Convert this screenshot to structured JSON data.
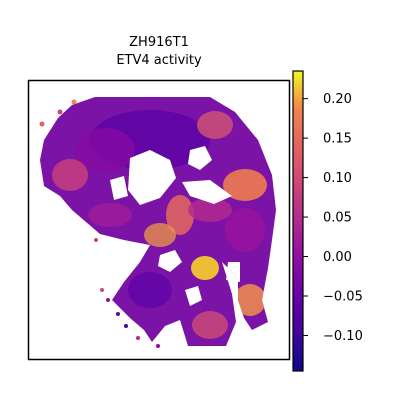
{
  "chart_data": {
    "type": "heatmap",
    "title_lines": [
      "ZH916T1",
      "ETV4 activity"
    ],
    "xlabel": "",
    "ylabel": "",
    "grid": false,
    "colormap": "plasma",
    "colorbar": {
      "vmin": -0.145,
      "vmax": 0.235,
      "ticks": [
        -0.1,
        -0.05,
        0.0,
        0.05,
        0.1,
        0.15,
        0.2
      ],
      "tick_labels": [
        "−0.10",
        "−0.05",
        "0.00",
        "0.05",
        "0.10",
        "0.15",
        "0.20"
      ]
    }
  }
}
